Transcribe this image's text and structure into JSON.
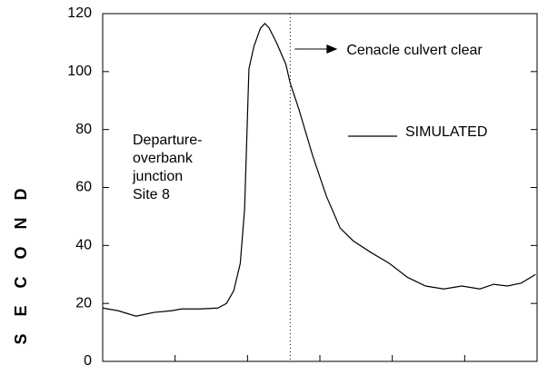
{
  "chart_data": {
    "type": "line",
    "y_label": "S E C O N D",
    "annotation": "Cenacle culvert clear",
    "site_label": [
      "Departure-",
      "overbank",
      "junction",
      "Site 8"
    ],
    "vline_x": 2.59,
    "xlim": [
      0,
      6
    ],
    "xticks": [
      0,
      1,
      2,
      3,
      4,
      5,
      6
    ],
    "ylim": [
      0,
      120
    ],
    "yticks": [
      0,
      20,
      40,
      60,
      80,
      100,
      120
    ],
    "series": [
      {
        "name": "SIMULATED",
        "color": "#000000",
        "x": [
          0,
          0.21,
          0.46,
          0.71,
          0.96,
          1.09,
          1.34,
          1.59,
          1.71,
          1.81,
          1.9,
          1.96,
          2.02,
          2.09,
          2.18,
          2.24,
          2.3,
          2.4,
          2.53,
          2.59,
          2.71,
          2.9,
          3.09,
          3.28,
          3.46,
          3.71,
          3.96,
          4.21,
          4.46,
          4.71,
          4.96,
          5.21,
          5.4,
          5.59,
          5.78,
          5.98
        ],
        "values": [
          18.4,
          17.5,
          15.6,
          16.9,
          17.5,
          18.1,
          18.1,
          18.4,
          20,
          24.4,
          33.8,
          52.5,
          101,
          108.8,
          115,
          116.6,
          115,
          110,
          102.5,
          96,
          87,
          71,
          57,
          46,
          41.6,
          37.5,
          33.8,
          29,
          26,
          25,
          26,
          25,
          26.6,
          26,
          27,
          30
        ]
      }
    ]
  }
}
